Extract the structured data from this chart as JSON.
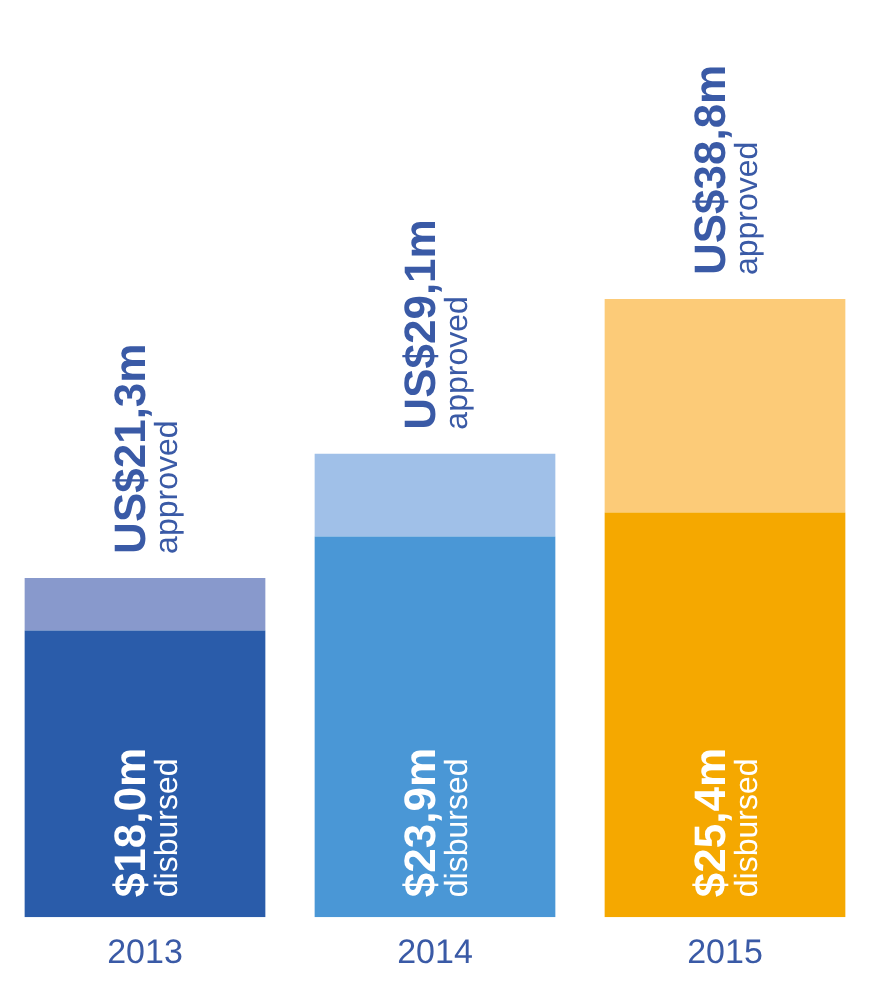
{
  "chart_data": {
    "type": "bar",
    "stacked": true,
    "categories": [
      "2013",
      "2014",
      "2015"
    ],
    "series": [
      {
        "colors": [
          "#2a5caa",
          "#4a97d6",
          "#f5a800"
        ],
        "values": [
          18.0,
          23.9,
          25.4
        ],
        "value_labels": [
          "$18,0m\ndisbursed",
          "$23,9m\ndisbursed",
          "$25,4m\ndisbursed"
        ]
      },
      {
        "colors": [
          "#8899cc",
          "#a0c0e8",
          "#fccb78"
        ],
        "values": [
          3.3,
          5.2,
          13.4
        ]
      }
    ],
    "totals": [
      "US$21,3m\napproved",
      "US$29,1m\napproved",
      "US$38,8m\napproved"
    ],
    "tick_labels": "x",
    "grid": false,
    "legend": false
  }
}
